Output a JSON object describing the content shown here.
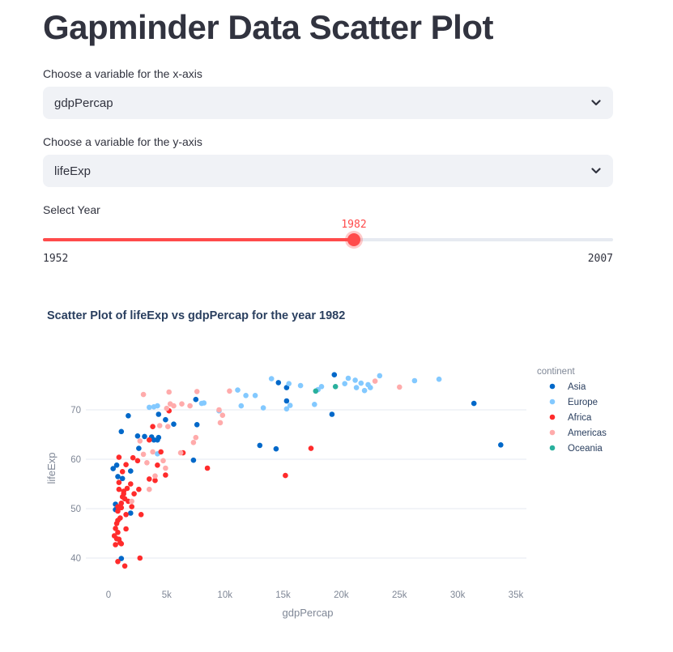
{
  "page": {
    "title": "Gapminder Data Scatter Plot"
  },
  "controls": {
    "x_select": {
      "label": "Choose a variable for the x-axis",
      "value": "gdpPercap"
    },
    "y_select": {
      "label": "Choose a variable for the y-axis",
      "value": "lifeExp"
    },
    "year_slider": {
      "label": "Select Year",
      "value": "1982",
      "min": "1952",
      "max": "2007",
      "value_num": 1982,
      "min_num": 1952,
      "max_num": 2007
    }
  },
  "colors": {
    "accent": "#ff4b4b",
    "Asia": "#0068c9",
    "Europe": "#83c9ff",
    "Africa": "#ff2b2b",
    "Americas": "#ffabab",
    "Oceania": "#29b09d"
  },
  "chart_data": {
    "type": "scatter",
    "title": "Scatter Plot of lifeExp vs gdpPercap for the year 1982",
    "xlabel": "gdpPercap",
    "ylabel": "lifeExp",
    "xlim": [
      -1900,
      35700
    ],
    "ylim": [
      36,
      83
    ],
    "x_ticks": [
      0,
      5000,
      10000,
      15000,
      20000,
      25000,
      30000,
      35000
    ],
    "x_tick_labels": [
      "0",
      "5k",
      "10k",
      "15k",
      "20k",
      "25k",
      "30k",
      "35k"
    ],
    "y_ticks": [
      40,
      50,
      60,
      70
    ],
    "y_tick_labels": [
      "40",
      "50",
      "60",
      "70"
    ],
    "grid": true,
    "legend": {
      "title": "continent",
      "position": "right",
      "entries": [
        "Asia",
        "Europe",
        "Africa",
        "Americas",
        "Oceania"
      ]
    },
    "series": [
      {
        "name": "Asia",
        "points": [
          [
            33700,
            62.9
          ],
          [
            31400,
            71.3
          ],
          [
            19200,
            69.1
          ],
          [
            19400,
            77.1
          ],
          [
            15300,
            71.8
          ],
          [
            15300,
            74.5
          ],
          [
            14600,
            75.5
          ],
          [
            14400,
            62.1
          ],
          [
            13000,
            62.8
          ],
          [
            7500,
            72.1
          ],
          [
            7600,
            67.0
          ],
          [
            7300,
            59.8
          ],
          [
            5600,
            67.1
          ],
          [
            4900,
            68.0
          ],
          [
            4300,
            69.1
          ],
          [
            3700,
            64.5
          ],
          [
            4200,
            63.9
          ],
          [
            4300,
            64.4
          ],
          [
            3900,
            63.9
          ],
          [
            3100,
            64.6
          ],
          [
            2600,
            62.2
          ],
          [
            2500,
            64.7
          ],
          [
            1900,
            57.6
          ],
          [
            1900,
            49.1
          ],
          [
            1700,
            68.8
          ],
          [
            1100,
            65.6
          ],
          [
            800,
            56.5
          ],
          [
            700,
            58.8
          ],
          [
            600,
            50.9
          ],
          [
            400,
            58.1
          ],
          [
            1200,
            56.1
          ],
          [
            1100,
            39.9
          ],
          [
            600,
            49.8
          ]
        ]
      },
      {
        "name": "Europe",
        "points": [
          [
            28400,
            76.2
          ],
          [
            26300,
            75.9
          ],
          [
            23300,
            76.9
          ],
          [
            22500,
            74.5
          ],
          [
            22300,
            75.1
          ],
          [
            22000,
            73.9
          ],
          [
            21700,
            75.4
          ],
          [
            21300,
            74.5
          ],
          [
            21200,
            76.0
          ],
          [
            20600,
            76.4
          ],
          [
            20300,
            75.3
          ],
          [
            18300,
            74.7
          ],
          [
            18000,
            74.1
          ],
          [
            17700,
            71.1
          ],
          [
            16500,
            74.9
          ],
          [
            15500,
            75.3
          ],
          [
            15600,
            70.9
          ],
          [
            15300,
            70.2
          ],
          [
            14000,
            76.3
          ],
          [
            13300,
            70.4
          ],
          [
            12600,
            72.9
          ],
          [
            11800,
            72.9
          ],
          [
            11400,
            70.8
          ],
          [
            11100,
            74.0
          ],
          [
            9500,
            69.8
          ],
          [
            8200,
            71.4
          ],
          [
            8000,
            71.3
          ],
          [
            4200,
            70.8
          ],
          [
            3900,
            70.6
          ],
          [
            3500,
            70.5
          ],
          [
            4200,
            61.1
          ]
        ]
      },
      {
        "name": "Africa",
        "points": [
          [
            17400,
            62.2
          ],
          [
            15200,
            56.7
          ],
          [
            8500,
            58.2
          ],
          [
            6400,
            61.3
          ],
          [
            5200,
            69.8
          ],
          [
            4900,
            56.8
          ],
          [
            4500,
            61.5
          ],
          [
            4200,
            58.8
          ],
          [
            4000,
            55.7
          ],
          [
            3800,
            66.6
          ],
          [
            3500,
            63.9
          ],
          [
            3500,
            56.0
          ],
          [
            2800,
            48.8
          ],
          [
            2600,
            53.9
          ],
          [
            2500,
            59.7
          ],
          [
            2700,
            40.0
          ],
          [
            2100,
            60.3
          ],
          [
            2000,
            50.4
          ],
          [
            1900,
            55.0
          ],
          [
            1500,
            58.9
          ],
          [
            1500,
            45.9
          ],
          [
            1300,
            53.5
          ],
          [
            1200,
            52.4
          ],
          [
            1100,
            51.1
          ],
          [
            1100,
            50.2
          ],
          [
            1400,
            38.4
          ],
          [
            900,
            60.4
          ],
          [
            900,
            55.3
          ],
          [
            900,
            53.9
          ],
          [
            800,
            49.5
          ],
          [
            800,
            47.6
          ],
          [
            800,
            45.2
          ],
          [
            700,
            43.9
          ],
          [
            600,
            42.7
          ],
          [
            900,
            43.8
          ],
          [
            1000,
            43.1
          ],
          [
            600,
            46.0
          ],
          [
            800,
            39.3
          ],
          [
            1000,
            48.1
          ],
          [
            700,
            47.0
          ],
          [
            500,
            44.5
          ],
          [
            1100,
            42.9
          ],
          [
            1400,
            52.0
          ],
          [
            1500,
            48.8
          ],
          [
            1300,
            53.0
          ],
          [
            1600,
            54.1
          ],
          [
            800,
            50.4
          ],
          [
            1200,
            57.5
          ],
          [
            2200,
            53.0
          ],
          [
            1700,
            51.5
          ]
        ]
      },
      {
        "name": "Americas",
        "points": [
          [
            25000,
            74.6
          ],
          [
            22900,
            75.8
          ],
          [
            10400,
            73.8
          ],
          [
            9800,
            68.9
          ],
          [
            9500,
            70.0
          ],
          [
            9600,
            67.4
          ],
          [
            7600,
            73.7
          ],
          [
            7500,
            64.4
          ],
          [
            7300,
            63.4
          ],
          [
            7000,
            70.8
          ],
          [
            6300,
            71.2
          ],
          [
            6200,
            61.3
          ],
          [
            5200,
            73.6
          ],
          [
            5300,
            71.2
          ],
          [
            5000,
            70.3
          ],
          [
            5100,
            66.6
          ],
          [
            4700,
            59.7
          ],
          [
            4400,
            66.8
          ],
          [
            4000,
            56.6
          ],
          [
            3800,
            61.5
          ],
          [
            3500,
            53.9
          ],
          [
            3300,
            59.3
          ],
          [
            3000,
            73.1
          ],
          [
            2700,
            63.7
          ],
          [
            2000,
            51.5
          ],
          [
            3000,
            61.0
          ],
          [
            4900,
            58.2
          ],
          [
            5600,
            70.8
          ]
        ]
      },
      {
        "name": "Oceania",
        "points": [
          [
            19500,
            74.7
          ],
          [
            17800,
            73.8
          ]
        ]
      }
    ]
  }
}
